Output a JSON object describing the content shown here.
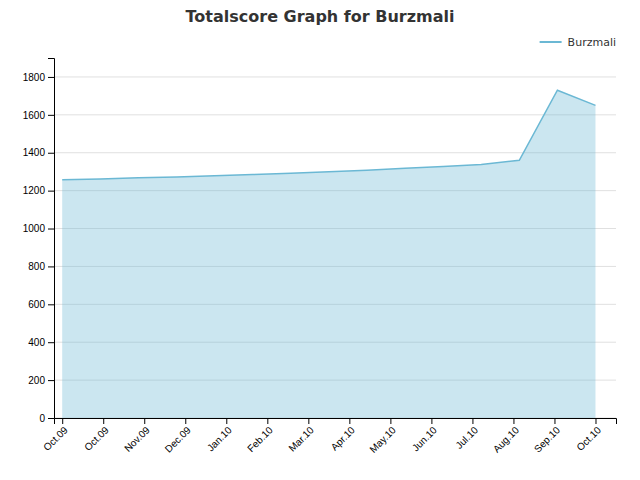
{
  "chart_data": {
    "type": "area",
    "title": "Totalscore Graph for Burzmali",
    "x": [
      0,
      0.9285714285714286,
      1.8571428571428572,
      2.7857142857142856,
      3.7142857142857144,
      4.642857142857143,
      5.571428571428571,
      6.5,
      7.428571428571429,
      8.357142857142858,
      9.285714285714286,
      10.214285714285714,
      11.142857142857142,
      12.071428571428571,
      13
    ],
    "series": [
      {
        "name": "Burzmali",
        "color": "#6BB8D4",
        "values": [
          1258,
          1262,
          1268,
          1272,
          1278,
          1285,
          1292,
          1300,
          1308,
          1318,
          1328,
          1338,
          1360,
          1730,
          1650
        ]
      }
    ],
    "xlim": [
      -0.2,
      13.5
    ],
    "xticks": [
      {
        "value": 0,
        "label": "Oct.09"
      },
      {
        "value": 1,
        "label": "Oct.09"
      },
      {
        "value": 2,
        "label": "Nov.09"
      },
      {
        "value": 3,
        "label": "Dec.09"
      },
      {
        "value": 4,
        "label": "Jan.10"
      },
      {
        "value": 5,
        "label": "Feb.10"
      },
      {
        "value": 6,
        "label": "Mar.10"
      },
      {
        "value": 7,
        "label": "Apr.10"
      },
      {
        "value": 8,
        "label": "May.10"
      },
      {
        "value": 9,
        "label": "Jun.10"
      },
      {
        "value": 10,
        "label": "Jul.10"
      },
      {
        "value": 11,
        "label": "Aug.10"
      },
      {
        "value": 12,
        "label": "Sep.10"
      },
      {
        "value": 13,
        "label": "Oct.10"
      }
    ],
    "ylim": [
      0,
      1900
    ],
    "yticks": [
      0,
      200,
      400,
      600,
      800,
      1000,
      1200,
      1400,
      1600,
      1800
    ],
    "grid": true,
    "legend": "upper right"
  }
}
